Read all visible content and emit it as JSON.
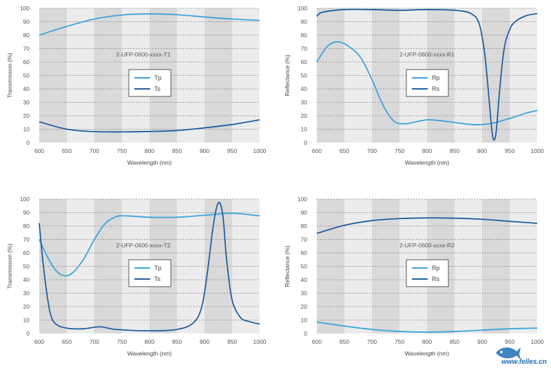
{
  "colors": {
    "band_dark": "#d9d9d9",
    "band_light": "#ececec",
    "grid": "#7f7f7f",
    "primary_series": "#3aa3dc",
    "secondary_series": "#1f5e9e"
  },
  "chart_data": [
    {
      "type": "line",
      "id": "t1",
      "title": "2-UFP-0600-xxxx-T1",
      "xlabel": "Wavelength (nm)",
      "ylabel": "Transmission (%)",
      "xlim": [
        600,
        1000
      ],
      "ylim": [
        0,
        100
      ],
      "xticks": [
        600,
        650,
        700,
        750,
        800,
        850,
        900,
        950,
        1000
      ],
      "yticks": [
        0,
        10,
        20,
        30,
        40,
        50,
        60,
        70,
        80,
        90,
        100
      ],
      "legend": [
        "Tp",
        "Ts"
      ],
      "series": [
        {
          "name": "Tp",
          "x": [
            600,
            650,
            700,
            750,
            800,
            850,
            900,
            950,
            1000
          ],
          "y": [
            80,
            86.5,
            92,
            95,
            95.8,
            95.2,
            93.5,
            92,
            91
          ]
        },
        {
          "name": "Ts",
          "x": [
            600,
            650,
            700,
            750,
            800,
            850,
            900,
            950,
            1000
          ],
          "y": [
            15.5,
            10,
            8.2,
            8,
            8.3,
            9,
            11,
            13.5,
            17
          ]
        }
      ]
    },
    {
      "type": "line",
      "id": "r1",
      "title": "2-UFP-0600-xxxx-R1",
      "xlabel": "Wavelength (nm)",
      "ylabel": "Reflectance (%)",
      "xlim": [
        600,
        1000
      ],
      "ylim": [
        0,
        100
      ],
      "xticks": [
        600,
        650,
        700,
        750,
        800,
        850,
        900,
        950,
        1000
      ],
      "yticks": [
        0,
        10,
        20,
        30,
        40,
        50,
        60,
        70,
        80,
        90,
        100
      ],
      "legend": [
        "Rp",
        "Rs"
      ],
      "series": [
        {
          "name": "Rp",
          "x": [
            600,
            620,
            640,
            660,
            680,
            700,
            720,
            740,
            760,
            780,
            800,
            820,
            850,
            880,
            900,
            920,
            950,
            980,
            1000
          ],
          "y": [
            60,
            72,
            75,
            71,
            63,
            47,
            28,
            16,
            14,
            15.5,
            17,
            16.5,
            15,
            13.5,
            13.5,
            14.5,
            18,
            22,
            24
          ]
        },
        {
          "name": "Rs",
          "x": [
            600,
            610,
            650,
            700,
            750,
            800,
            850,
            880,
            895,
            905,
            912,
            918,
            922,
            926,
            932,
            940,
            950,
            960,
            980,
            1000
          ],
          "y": [
            94,
            97,
            99,
            99,
            98.5,
            99,
            98.5,
            96,
            88,
            65,
            35,
            8,
            2,
            10,
            40,
            70,
            84,
            90,
            94.5,
            96
          ]
        }
      ]
    },
    {
      "type": "line",
      "id": "t2",
      "title": "2-UFP-0600-xxxx-T2",
      "xlabel": "Wavelength (nm)",
      "ylabel": "Transmission (%)",
      "xlim": [
        600,
        1000
      ],
      "ylim": [
        0,
        100
      ],
      "xticks": [
        600,
        650,
        700,
        750,
        800,
        850,
        900,
        950,
        1000
      ],
      "yticks": [
        0,
        10,
        20,
        30,
        40,
        50,
        60,
        70,
        80,
        90,
        100
      ],
      "legend": [
        "Tp",
        "Ts"
      ],
      "series": [
        {
          "name": "Tp",
          "x": [
            600,
            615,
            630,
            645,
            660,
            680,
            700,
            720,
            740,
            760,
            800,
            850,
            900,
            950,
            1000
          ],
          "y": [
            70,
            57,
            47,
            43,
            45,
            55,
            70,
            82,
            87,
            87.5,
            86.5,
            86.5,
            88,
            89.5,
            87.5
          ]
        },
        {
          "name": "Ts",
          "x": [
            600,
            605,
            612,
            620,
            630,
            650,
            680,
            710,
            740,
            800,
            850,
            880,
            895,
            905,
            915,
            922,
            928,
            934,
            940,
            950,
            965,
            980,
            1000
          ],
          "y": [
            82,
            60,
            35,
            15,
            7,
            4,
            3.5,
            5,
            3,
            2,
            3,
            8,
            20,
            45,
            78,
            94,
            97,
            85,
            55,
            25,
            12,
            9,
            7
          ]
        }
      ]
    },
    {
      "type": "line",
      "id": "r2",
      "title": "2-UFP-0600-xxxx-R2",
      "xlabel": "Wavelength (nm)",
      "ylabel": "Reflectance (%)",
      "xlim": [
        600,
        1000
      ],
      "ylim": [
        0,
        100
      ],
      "xticks": [
        600,
        650,
        700,
        750,
        800,
        850,
        900,
        950,
        1000
      ],
      "yticks": [
        0,
        10,
        20,
        30,
        40,
        50,
        60,
        70,
        80,
        90,
        100
      ],
      "legend": [
        "Rp",
        "Rs"
      ],
      "series": [
        {
          "name": "Rp",
          "x": [
            600,
            650,
            700,
            750,
            800,
            850,
            900,
            950,
            1000
          ],
          "y": [
            8.5,
            5.5,
            3,
            1.5,
            1,
            1.5,
            2.5,
            3.5,
            4
          ]
        },
        {
          "name": "Rs",
          "x": [
            600,
            650,
            700,
            750,
            800,
            850,
            900,
            950,
            1000
          ],
          "y": [
            74.5,
            80.5,
            84,
            85.5,
            86,
            85.8,
            85,
            83.5,
            82
          ]
        }
      ]
    }
  ],
  "watermark": {
    "url": "www.felles.cn"
  }
}
